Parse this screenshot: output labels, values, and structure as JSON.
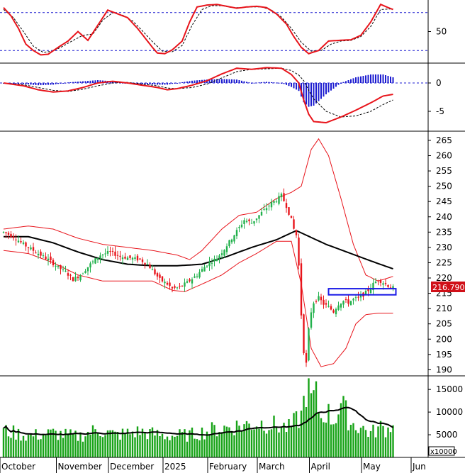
{
  "chart_data": {
    "type": "candlestick",
    "x_months": [
      "October",
      "November",
      "December",
      "2025",
      "February",
      "March",
      "April",
      "May",
      "Jun"
    ],
    "last_price_label": "216.7900",
    "volume_unit_label": "x10000",
    "panels": {
      "stochastic": {
        "y_ticks": [
          "50"
        ],
        "guide_levels": [
          80,
          20
        ],
        "range": [
          0,
          100
        ]
      },
      "macd": {
        "y_ticks": [
          "0",
          "-5"
        ],
        "range": [
          -8.5,
          3.5
        ]
      },
      "price": {
        "y_ticks": [
          "190",
          "195",
          "200",
          "205",
          "210",
          "215",
          "220",
          "225",
          "230",
          "235",
          "240",
          "245",
          "250",
          "255",
          "260",
          "265"
        ],
        "range": [
          188,
          268
        ]
      },
      "volume": {
        "y_ticks": [
          "5000",
          "10000",
          "15000"
        ],
        "range": [
          0,
          18000
        ]
      }
    },
    "colors": {
      "up": "#22b14c",
      "down": "#e8141b",
      "band": "#e8141b",
      "ma": "#000000",
      "volume": "#17a317",
      "macd_hist": "#1c1cd0",
      "guide": "#1c1cd0",
      "price_tag": "#d01018",
      "box": "#1a1ae6"
    },
    "price_path": [
      [
        0,
        235
      ],
      [
        4,
        233.5
      ],
      [
        8,
        231
      ],
      [
        13,
        228.5
      ],
      [
        18,
        226
      ],
      [
        22,
        223.5
      ],
      [
        25,
        222
      ],
      [
        28,
        219.5
      ],
      [
        31,
        221
      ],
      [
        35,
        224.5
      ],
      [
        39,
        227.5
      ],
      [
        43,
        228.5
      ],
      [
        47,
        227
      ],
      [
        51,
        226.5
      ],
      [
        55,
        226
      ],
      [
        58,
        224.5
      ],
      [
        61,
        221.5
      ],
      [
        63,
        219.5
      ],
      [
        66,
        218
      ],
      [
        68,
        216.5
      ],
      [
        71,
        217
      ],
      [
        74,
        218.5
      ],
      [
        78,
        221
      ],
      [
        82,
        224.5
      ],
      [
        86,
        226.5
      ],
      [
        89,
        229.5
      ],
      [
        92,
        233
      ],
      [
        95,
        236.5
      ],
      [
        97,
        239
      ],
      [
        100,
        238
      ],
      [
        103,
        240.5
      ],
      [
        106,
        243
      ],
      [
        108,
        244.5
      ],
      [
        110,
        245.5
      ],
      [
        112,
        247
      ],
      [
        114,
        243.5
      ],
      [
        116,
        239
      ],
      [
        117,
        236
      ],
      [
        118,
        234
      ],
      [
        119,
        224
      ],
      [
        120,
        208
      ],
      [
        121,
        196
      ],
      [
        122,
        192
      ],
      [
        123,
        203
      ],
      [
        124,
        209
      ],
      [
        125,
        212
      ],
      [
        127,
        213.5
      ],
      [
        129,
        211.5
      ],
      [
        131,
        210.5
      ],
      [
        133,
        209
      ],
      [
        135,
        211.5
      ],
      [
        137,
        212.5
      ],
      [
        139,
        212
      ],
      [
        141,
        213
      ],
      [
        143,
        213.5
      ],
      [
        145,
        214.5
      ],
      [
        147,
        216
      ],
      [
        149,
        218
      ],
      [
        151,
        219.5
      ],
      [
        153,
        218.5
      ],
      [
        155,
        217.5
      ],
      [
        157,
        216.8
      ]
    ],
    "ma_path": [
      [
        0,
        233.5
      ],
      [
        10,
        233.5
      ],
      [
        20,
        231.5
      ],
      [
        30,
        228.5
      ],
      [
        40,
        226
      ],
      [
        50,
        224.5
      ],
      [
        60,
        224
      ],
      [
        70,
        224
      ],
      [
        80,
        224.5
      ],
      [
        90,
        227
      ],
      [
        100,
        230
      ],
      [
        110,
        232.5
      ],
      [
        118,
        235.5
      ],
      [
        122,
        234
      ],
      [
        130,
        231
      ],
      [
        140,
        228
      ],
      [
        150,
        225
      ],
      [
        157,
        223
      ]
    ],
    "band_upper": [
      [
        0,
        236
      ],
      [
        10,
        237
      ],
      [
        20,
        236
      ],
      [
        30,
        233
      ],
      [
        40,
        231
      ],
      [
        50,
        230
      ],
      [
        60,
        229
      ],
      [
        70,
        227.5
      ],
      [
        75,
        226
      ],
      [
        80,
        229
      ],
      [
        88,
        236
      ],
      [
        95,
        240.5
      ],
      [
        102,
        241.5
      ],
      [
        110,
        246
      ],
      [
        116,
        248
      ],
      [
        120,
        250
      ],
      [
        124,
        262
      ],
      [
        127,
        265.5
      ],
      [
        131,
        260
      ],
      [
        136,
        246
      ],
      [
        141,
        231
      ],
      [
        146,
        221
      ],
      [
        151,
        219
      ],
      [
        157,
        220.5
      ]
    ],
    "band_lower": [
      [
        0,
        229
      ],
      [
        10,
        228
      ],
      [
        20,
        225
      ],
      [
        30,
        221
      ],
      [
        40,
        219
      ],
      [
        50,
        219
      ],
      [
        60,
        219
      ],
      [
        68,
        216
      ],
      [
        73,
        215.5
      ],
      [
        80,
        218
      ],
      [
        88,
        221
      ],
      [
        95,
        225
      ],
      [
        102,
        228
      ],
      [
        110,
        232
      ],
      [
        116,
        232
      ],
      [
        120,
        218
      ],
      [
        124,
        197
      ],
      [
        128,
        191
      ],
      [
        133,
        192
      ],
      [
        138,
        197
      ],
      [
        142,
        205
      ],
      [
        146,
        208
      ],
      [
        151,
        208.5
      ],
      [
        157,
        208.5
      ]
    ],
    "stoch_k": [
      [
        0,
        88
      ],
      [
        3,
        75
      ],
      [
        6,
        55
      ],
      [
        9,
        30
      ],
      [
        12,
        20
      ],
      [
        15,
        13
      ],
      [
        18,
        14
      ],
      [
        22,
        25
      ],
      [
        26,
        35
      ],
      [
        30,
        50
      ],
      [
        34,
        36
      ],
      [
        38,
        60
      ],
      [
        42,
        84
      ],
      [
        46,
        78
      ],
      [
        50,
        72
      ],
      [
        54,
        55
      ],
      [
        57,
        40
      ],
      [
        60,
        25
      ],
      [
        62,
        16
      ],
      [
        65,
        15
      ],
      [
        68,
        21
      ],
      [
        72,
        35
      ],
      [
        75,
        65
      ],
      [
        78,
        89
      ],
      [
        82,
        92
      ],
      [
        86,
        93
      ],
      [
        90,
        90
      ],
      [
        94,
        87
      ],
      [
        98,
        89
      ],
      [
        102,
        90
      ],
      [
        106,
        88
      ],
      [
        110,
        78
      ],
      [
        114,
        62
      ],
      [
        117,
        42
      ],
      [
        120,
        25
      ],
      [
        123,
        15
      ],
      [
        127,
        20
      ],
      [
        131,
        35
      ],
      [
        135,
        36
      ],
      [
        140,
        37
      ],
      [
        144,
        44
      ],
      [
        148,
        65
      ],
      [
        152,
        93
      ],
      [
        155,
        88
      ],
      [
        157,
        85
      ]
    ],
    "stoch_d": [
      [
        0,
        85
      ],
      [
        4,
        72
      ],
      [
        8,
        50
      ],
      [
        12,
        27
      ],
      [
        16,
        17
      ],
      [
        20,
        19
      ],
      [
        24,
        27
      ],
      [
        28,
        36
      ],
      [
        32,
        44
      ],
      [
        36,
        46
      ],
      [
        40,
        68
      ],
      [
        44,
        80
      ],
      [
        48,
        76
      ],
      [
        52,
        67
      ],
      [
        56,
        51
      ],
      [
        60,
        34
      ],
      [
        64,
        19
      ],
      [
        68,
        18
      ],
      [
        72,
        28
      ],
      [
        76,
        60
      ],
      [
        80,
        85
      ],
      [
        84,
        91
      ],
      [
        88,
        91
      ],
      [
        92,
        88
      ],
      [
        96,
        88
      ],
      [
        100,
        89
      ],
      [
        104,
        89
      ],
      [
        108,
        84
      ],
      [
        112,
        73
      ],
      [
        116,
        55
      ],
      [
        120,
        33
      ],
      [
        124,
        19
      ],
      [
        128,
        20
      ],
      [
        132,
        30
      ],
      [
        136,
        35
      ],
      [
        140,
        36
      ],
      [
        144,
        42
      ],
      [
        148,
        58
      ],
      [
        152,
        85
      ],
      [
        157,
        86
      ]
    ],
    "macd_line": [
      [
        0,
        0
      ],
      [
        8,
        -0.5
      ],
      [
        14,
        -1.2
      ],
      [
        20,
        -1.6
      ],
      [
        26,
        -1.4
      ],
      [
        32,
        -0.8
      ],
      [
        38,
        0
      ],
      [
        44,
        0.3
      ],
      [
        50,
        0
      ],
      [
        56,
        -0.4
      ],
      [
        62,
        -0.8
      ],
      [
        66,
        -1.2
      ],
      [
        70,
        -1
      ],
      [
        76,
        -0.4
      ],
      [
        82,
        0.4
      ],
      [
        88,
        1.6
      ],
      [
        94,
        2.6
      ],
      [
        100,
        2.4
      ],
      [
        106,
        2.7
      ],
      [
        112,
        2.6
      ],
      [
        116,
        1.5
      ],
      [
        119,
        0
      ],
      [
        121,
        -3
      ],
      [
        123,
        -5.5
      ],
      [
        125,
        -6.8
      ],
      [
        130,
        -7
      ],
      [
        136,
        -6
      ],
      [
        142,
        -4.8
      ],
      [
        148,
        -3.5
      ],
      [
        153,
        -2.3
      ],
      [
        157,
        -2
      ]
    ],
    "macd_signal": [
      [
        0,
        0
      ],
      [
        8,
        -0.3
      ],
      [
        14,
        -0.8
      ],
      [
        20,
        -1.3
      ],
      [
        26,
        -1.5
      ],
      [
        32,
        -1.1
      ],
      [
        38,
        -0.5
      ],
      [
        44,
        0
      ],
      [
        50,
        0.1
      ],
      [
        56,
        -0.2
      ],
      [
        62,
        -0.5
      ],
      [
        66,
        -0.9
      ],
      [
        70,
        -1
      ],
      [
        76,
        -0.8
      ],
      [
        82,
        -0.2
      ],
      [
        88,
        0.9
      ],
      [
        94,
        2
      ],
      [
        100,
        2.4
      ],
      [
        106,
        2.5
      ],
      [
        112,
        2.6
      ],
      [
        116,
        2.2
      ],
      [
        119,
        1.4
      ],
      [
        121,
        0.4
      ],
      [
        123,
        -1.3
      ],
      [
        125,
        -2.8
      ],
      [
        130,
        -5
      ],
      [
        136,
        -6
      ],
      [
        142,
        -5.8
      ],
      [
        148,
        -5
      ],
      [
        153,
        -3.8
      ],
      [
        157,
        -3
      ]
    ],
    "volume_levels": [
      [
        0,
        6200
      ],
      [
        10,
        5000
      ],
      [
        20,
        5600
      ],
      [
        30,
        4800
      ],
      [
        38,
        6500
      ],
      [
        45,
        5200
      ],
      [
        55,
        6000
      ],
      [
        65,
        5000
      ],
      [
        75,
        5200
      ],
      [
        85,
        6500
      ],
      [
        95,
        7400
      ],
      [
        105,
        8000
      ],
      [
        115,
        6800
      ],
      [
        120,
        9600
      ],
      [
        122,
        16200
      ],
      [
        124,
        13400
      ],
      [
        126,
        14000
      ],
      [
        128,
        9000
      ],
      [
        130,
        10800
      ],
      [
        133,
        8500
      ],
      [
        136,
        12500
      ],
      [
        140,
        8000
      ],
      [
        144,
        7000
      ],
      [
        148,
        5600
      ],
      [
        152,
        7000
      ],
      [
        155,
        6500
      ],
      [
        157,
        8800
      ]
    ]
  }
}
